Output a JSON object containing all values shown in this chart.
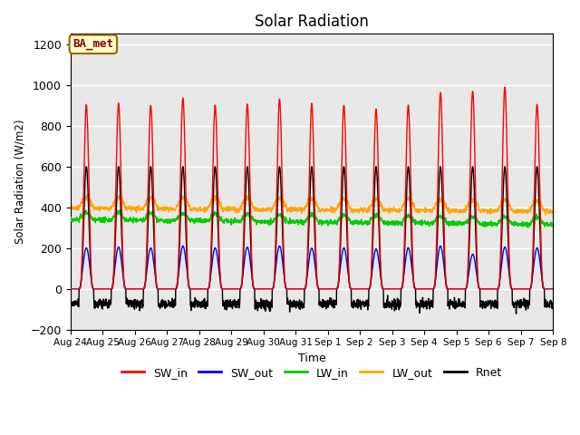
{
  "title": "Solar Radiation",
  "xlabel": "Time",
  "ylabel": "Solar Radiation (W/m2)",
  "ylim": [
    -200,
    1250
  ],
  "yticks": [
    -200,
    0,
    200,
    400,
    600,
    800,
    1000,
    1200
  ],
  "n_days": 15,
  "colors": {
    "SW_in": "#FF0000",
    "SW_out": "#0000FF",
    "LW_in": "#00CC00",
    "LW_out": "#FFA500",
    "Rnet": "#000000"
  },
  "legend_label": "BA_met",
  "legend_box_facecolor": "#FFFFCC",
  "legend_box_edgecolor": "#996600",
  "background_color": "#FFFFFF",
  "plot_bg_color": "#E8E8E8",
  "sw_in_peaks": [
    900,
    910,
    900,
    935,
    900,
    905,
    930,
    905,
    900,
    880,
    900,
    960,
    970,
    990,
    905
  ],
  "sw_out_peaks": [
    200,
    205,
    200,
    210,
    200,
    205,
    210,
    200,
    200,
    195,
    200,
    210,
    170,
    205,
    200
  ],
  "lw_in_base": 340,
  "lw_out_base": 395,
  "rnet_peak": 600,
  "rnet_night": -75,
  "samples_per_day": 144,
  "figsize": [
    6.4,
    4.8
  ],
  "dpi": 100,
  "tick_labels": [
    "Aug 24",
    "Aug 25",
    "Aug 26",
    "Aug 27",
    "Aug 28",
    "Aug 29",
    "Aug 30",
    "Aug 31",
    "Sep 1",
    "Sep 2",
    "Sep 3",
    "Sep 4",
    "Sep 5",
    "Sep 6",
    "Sep 7",
    "Sep 8"
  ]
}
